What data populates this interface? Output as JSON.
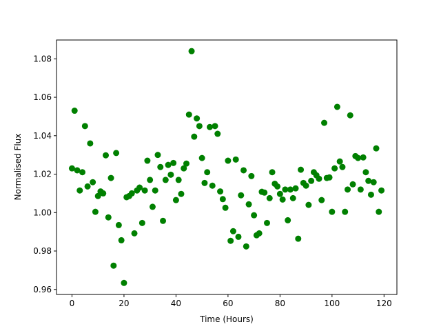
{
  "chart_data": {
    "type": "scatter",
    "x_label": "Time (Hours)",
    "y_label": "Normalised Flux",
    "color": "#008000",
    "x": [
      0,
      1,
      2,
      3,
      4,
      5,
      6,
      7,
      8,
      9,
      10,
      11,
      12,
      13,
      14,
      15,
      16,
      17,
      18,
      19,
      20,
      21,
      22,
      23,
      24,
      25,
      26,
      27,
      28,
      29,
      30,
      31,
      32,
      33,
      34,
      35,
      36,
      37,
      38,
      39,
      40,
      41,
      42,
      43,
      44,
      45,
      46,
      47,
      48,
      49,
      50,
      51,
      52,
      53,
      54,
      55,
      56,
      57,
      58,
      59,
      60,
      61,
      62,
      63,
      64,
      65,
      66,
      67,
      68,
      69,
      70,
      71,
      72,
      73,
      74,
      75,
      76,
      77,
      78,
      79,
      80,
      81,
      82,
      83,
      84,
      85,
      86,
      87,
      88,
      89,
      90,
      91,
      92,
      93,
      94,
      95,
      96,
      97,
      98,
      99,
      100,
      101,
      102,
      103,
      104,
      105,
      106,
      107,
      108,
      109,
      110,
      111,
      112,
      113,
      114,
      115,
      116,
      117,
      118,
      119
    ],
    "values": [
      1.023,
      1.053,
      1.022,
      1.0115,
      1.021,
      1.045,
      1.0136,
      1.036,
      1.0158,
      1.0004,
      1.0086,
      1.011,
      1.01,
      1.0298,
      0.9975,
      1.018,
      0.9724,
      1.031,
      0.9935,
      0.9856,
      0.9634,
      1.008,
      1.0086,
      1.01,
      0.9892,
      1.0115,
      1.013,
      0.9946,
      1.0115,
      1.027,
      1.017,
      1.003,
      1.0115,
      1.03,
      1.0237,
      0.9957,
      1.017,
      1.0248,
      1.0197,
      1.0258,
      1.0065,
      1.017,
      1.0097,
      1.023,
      1.0255,
      1.051,
      1.084,
      1.0395,
      1.049,
      1.045,
      1.0284,
      1.0154,
      1.021,
      1.0445,
      1.014,
      1.045,
      1.041,
      1.011,
      1.007,
      1.0025,
      1.027,
      0.9853,
      0.9903,
      1.0276,
      0.9874,
      1.009,
      1.022,
      0.9824,
      1.0043,
      1.019,
      0.9986,
      0.9882,
      0.9892,
      1.0108,
      1.0104,
      0.9946,
      1.0075,
      1.021,
      1.015,
      1.0136,
      1.0097,
      1.0068,
      1.012,
      0.996,
      1.012,
      1.0075,
      1.0126,
      0.9864,
      1.0223,
      1.0154,
      1.014,
      1.004,
      1.0165,
      1.021,
      1.0194,
      1.0176,
      1.0065,
      1.0467,
      1.018,
      1.0183,
      1.0004,
      1.023,
      1.055,
      1.0266,
      1.0237,
      1.0004,
      1.012,
      1.0506,
      1.0147,
      1.0294,
      1.0284,
      1.012,
      1.0287,
      1.021,
      1.0165,
      1.0093,
      1.0158,
      1.0334,
      1.0004,
      1.0115
    ],
    "xlim": [
      -5.95,
      124.95
    ],
    "xticks": [
      0,
      20,
      40,
      60,
      80,
      100,
      120
    ],
    "ylim": [
      0.9574,
      1.0898
    ],
    "yticks": [
      0.96,
      0.98,
      {
        "value": 1,
        "label": "1.00"
      },
      1.02,
      1.04,
      1.06,
      1.08
    ]
  }
}
